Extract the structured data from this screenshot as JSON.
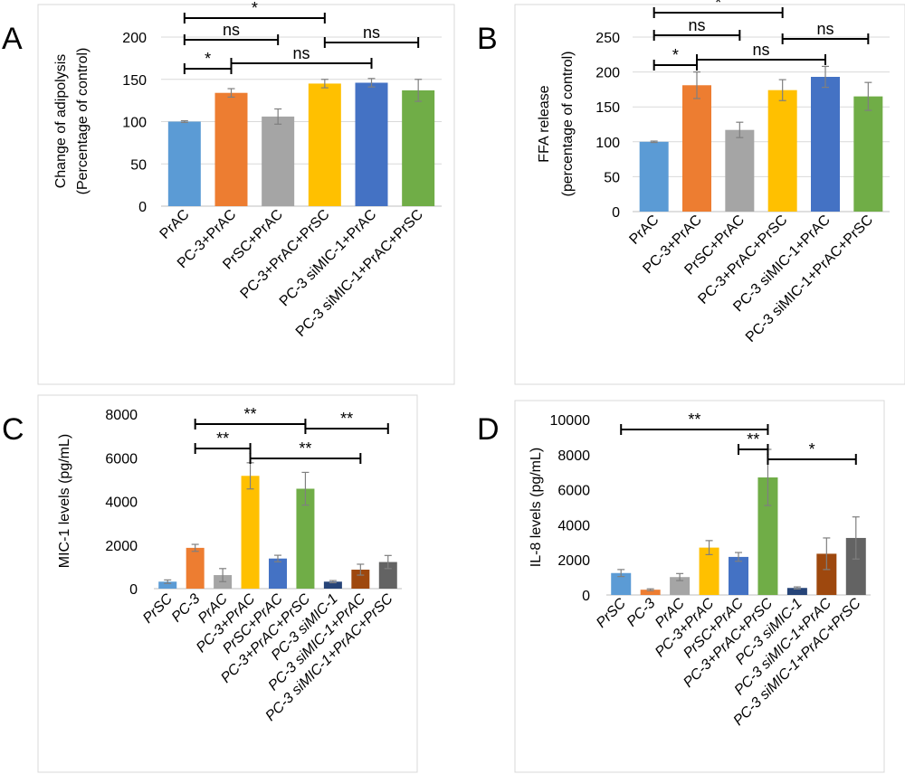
{
  "chart_data": [
    {
      "panel": "A",
      "type": "bar",
      "ylabel": [
        "Change of adipolysis",
        "(Percentage of control)"
      ],
      "ylim": [
        0,
        200
      ],
      "yticks": [
        0,
        50,
        100,
        150,
        200
      ],
      "grid": true,
      "categories": [
        "PrAC",
        "PC-3+PrAC",
        "PrSC+PrAC",
        "PC-3+PrAC+PrSC",
        "PC-3 siMIC-1+PrAC",
        "PC-3 siMIC-1+PrAC+PrSC"
      ],
      "values": [
        100,
        134,
        106,
        145,
        146,
        137
      ],
      "errors": [
        1,
        5,
        9,
        5,
        5,
        13
      ],
      "colors": [
        "#5b9bd5",
        "#ed7d31",
        "#a5a5a5",
        "#ffc000",
        "#4472c4",
        "#70ad47"
      ],
      "significance": [
        {
          "from": 0,
          "to": 3,
          "label": "*",
          "y": 20
        },
        {
          "from": 0,
          "to": 2,
          "label": "ns",
          "y": 44
        },
        {
          "from": 3,
          "to": 5,
          "label": "ns",
          "y": 47
        },
        {
          "from": 0,
          "to": 1,
          "label": "*",
          "y": 76
        },
        {
          "from": 1,
          "to": 4,
          "label": "ns",
          "y": 70
        }
      ]
    },
    {
      "panel": "B",
      "type": "bar",
      "ylabel": [
        "FFA release",
        "(percentage of control)"
      ],
      "ylim": [
        0,
        250
      ],
      "yticks": [
        0,
        50,
        100,
        150,
        200,
        250
      ],
      "grid": true,
      "categories": [
        "PrAC",
        "PC-3+PrAC",
        "PrSC+PrAC",
        "PC-3+PrAC+PrSC",
        "PC-3 siMIC-1+PrAC",
        "PC-3 siMIC-1+PrAC+PrSC"
      ],
      "values": [
        100,
        181,
        117,
        174,
        193,
        165
      ],
      "errors": [
        1,
        19,
        11,
        15,
        15,
        20
      ],
      "colors": [
        "#5b9bd5",
        "#ed7d31",
        "#a5a5a5",
        "#ffc000",
        "#4472c4",
        "#70ad47"
      ],
      "significance": [
        {
          "from": 0,
          "to": 3,
          "label": "*",
          "y": 14
        },
        {
          "from": 0,
          "to": 2,
          "label": "ns",
          "y": 39
        },
        {
          "from": 3,
          "to": 5,
          "label": "ns",
          "y": 43
        },
        {
          "from": 0,
          "to": 1,
          "label": "*",
          "y": 72
        },
        {
          "from": 1,
          "to": 4,
          "label": "ns",
          "y": 66
        }
      ]
    },
    {
      "panel": "C",
      "type": "bar",
      "ylabel": [
        "MIC-1 levels (pg/mL)"
      ],
      "ylim": [
        0,
        8000
      ],
      "yticks": [
        0,
        2000,
        4000,
        6000,
        8000
      ],
      "grid": false,
      "categories": [
        "PrSC",
        "PC-3",
        "PrAC",
        "PC-3+PrAC",
        "PrSC+PrAC",
        "PC-3+PrAC+PrSC",
        "PC-3 siMIC-1",
        "PC-3 siMIC-1+PrAC",
        "PC-3 siMIC-1+PrAC+PrSC"
      ],
      "values": [
        320,
        1870,
        620,
        5170,
        1380,
        4580,
        320,
        870,
        1220
      ],
      "errors": [
        80,
        160,
        300,
        600,
        150,
        750,
        50,
        250,
        300
      ],
      "colors": [
        "#5b9bd5",
        "#ed7d31",
        "#a5a5a5",
        "#ffc000",
        "#4472c4",
        "#70ad47",
        "#264478",
        "#9e480e",
        "#636363"
      ],
      "significance": [
        {
          "from": 1,
          "to": 5,
          "label": "**",
          "y": 469
        },
        {
          "from": 5,
          "to": 8,
          "label": "**",
          "y": 474
        },
        {
          "from": 1,
          "to": 3,
          "label": "**",
          "y": 496
        },
        {
          "from": 3,
          "to": 7,
          "label": "**",
          "y": 507
        }
      ]
    },
    {
      "panel": "D",
      "type": "bar",
      "ylabel": [
        "IL-8 levels (pg/mL)"
      ],
      "ylim": [
        0,
        10000
      ],
      "yticks": [
        0,
        2000,
        4000,
        6000,
        8000,
        10000
      ],
      "grid": false,
      "categories": [
        "PrSC",
        "PC-3",
        "PrAC",
        "PC-3+PrAC",
        "PrSC+PrAC",
        "PC-3+PrAC+PrSC",
        "PC-3 siMIC-1",
        "PC-3 siMIC-1+PrAC",
        "PC-3 siMIC-1+PrAC+PrSC"
      ],
      "values": [
        1250,
        300,
        1020,
        2700,
        2170,
        6700,
        400,
        2350,
        3250
      ],
      "errors": [
        200,
        50,
        200,
        400,
        250,
        1600,
        60,
        900,
        1200
      ],
      "colors": [
        "#5b9bd5",
        "#ed7d31",
        "#a5a5a5",
        "#ffc000",
        "#4472c4",
        "#70ad47",
        "#264478",
        "#9e480e",
        "#636363"
      ],
      "significance": [
        {
          "from": 0,
          "to": 5,
          "label": "**",
          "y": 475
        },
        {
          "from": 4,
          "to": 5,
          "label": "**",
          "y": 497
        },
        {
          "from": 5,
          "to": 8,
          "label": "*",
          "y": 508
        }
      ]
    }
  ]
}
